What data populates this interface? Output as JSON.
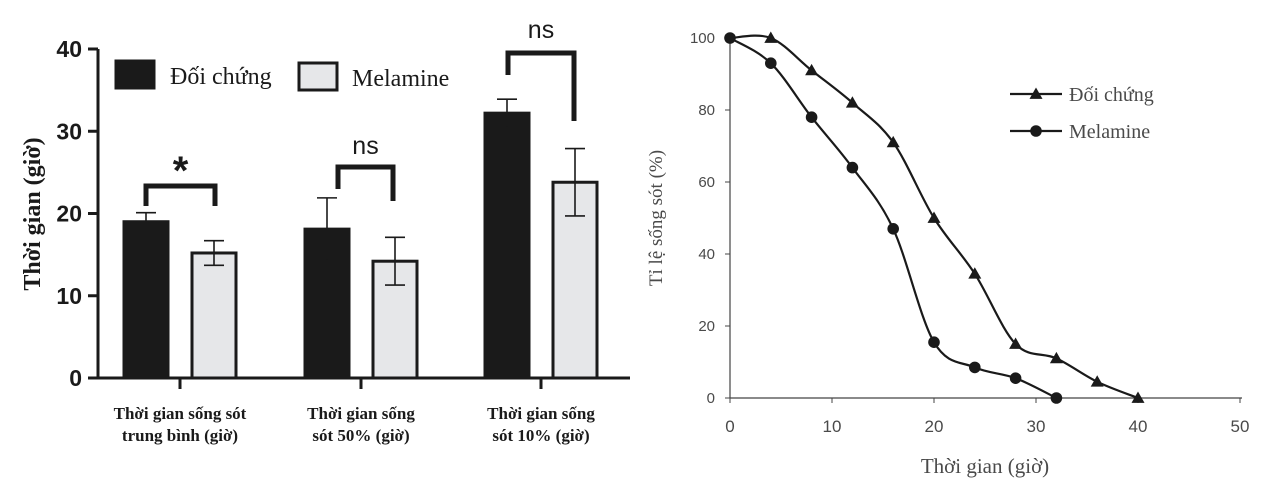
{
  "chart_data": [
    {
      "type": "bar",
      "ylabel": "Thời gian (giờ)",
      "ylim": [
        0,
        40
      ],
      "yticks": [
        "0",
        "10",
        "20",
        "30",
        "40"
      ],
      "categories": [
        [
          "Thời gian sống sót",
          "trung bình (giờ)"
        ],
        [
          "Thời gian sống",
          "sót 50% (giờ)"
        ],
        [
          "Thời gian sống",
          "sót 10% (giờ)"
        ]
      ],
      "legend_position": "top",
      "series": [
        {
          "name": "Đối chứng",
          "color": "#1a1a1a",
          "values": [
            19.0,
            18.1,
            32.2
          ],
          "errors": [
            1.1,
            3.8,
            1.7
          ]
        },
        {
          "name": "Melamine",
          "color": "#e6e7e9",
          "values": [
            15.2,
            14.2,
            23.8
          ],
          "errors": [
            1.5,
            2.9,
            4.1
          ]
        }
      ],
      "annotations": [
        "*",
        "ns",
        "ns"
      ],
      "grid": false
    },
    {
      "type": "line",
      "xlabel": "Thời gian (giờ)",
      "ylabel": "Tỉ lệ sống sót (%)",
      "xlim": [
        0,
        50
      ],
      "ylim": [
        0,
        100
      ],
      "xticks": [
        "0",
        "10",
        "20",
        "30",
        "40",
        "50"
      ],
      "yticks": [
        "0",
        "20",
        "40",
        "60",
        "80",
        "100"
      ],
      "legend_position": "top-right",
      "grid": false,
      "series": [
        {
          "name": "Đối chứng",
          "marker": "triangle",
          "color": "#1a1a1a",
          "points": [
            [
              0,
              100
            ],
            [
              4,
              100
            ],
            [
              8,
              91
            ],
            [
              12,
              82
            ],
            [
              16,
              71
            ],
            [
              20,
              50
            ],
            [
              24,
              34.5
            ],
            [
              28,
              15
            ],
            [
              32,
              11
            ],
            [
              36,
              4.5
            ],
            [
              40,
              0
            ]
          ]
        },
        {
          "name": "Melamine",
          "marker": "circle",
          "color": "#1a1a1a",
          "points": [
            [
              0,
              100
            ],
            [
              4,
              93
            ],
            [
              8,
              78
            ],
            [
              12,
              64
            ],
            [
              16,
              47
            ],
            [
              20,
              15.5
            ],
            [
              24,
              8.5
            ],
            [
              28,
              5.5
            ],
            [
              32,
              0
            ]
          ]
        }
      ]
    }
  ]
}
